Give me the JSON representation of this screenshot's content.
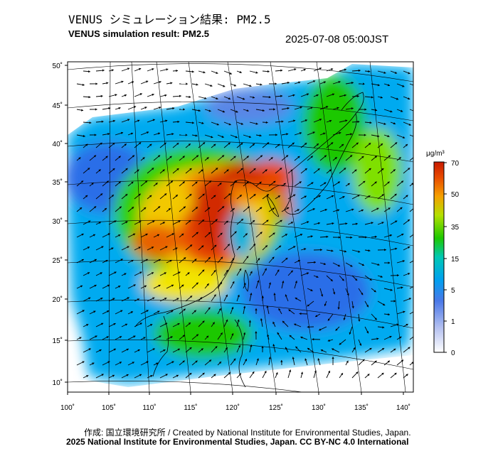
{
  "header": {
    "title_jp": "VENUS シミュレーション結果: PM2.5",
    "title_en": "VENUS simulation result: PM2.5",
    "timestamp": "2025-07-08 05:00JST"
  },
  "map": {
    "lon_ticks": [
      "100˚",
      "105˚",
      "110˚",
      "115˚",
      "120˚",
      "125˚",
      "130˚",
      "135˚",
      "140˚"
    ],
    "lat_ticks": [
      "50˚",
      "45˚",
      "40˚",
      "35˚",
      "30˚",
      "25˚",
      "20˚",
      "15˚",
      "10˚"
    ]
  },
  "colorbar": {
    "unit": "μg/m³",
    "ticks": [
      "70",
      "50",
      "35",
      "15",
      "5",
      "1",
      "0"
    ],
    "colors": [
      "#c81a00",
      "#e84a00",
      "#f5a000",
      "#f2e400",
      "#7fe000",
      "#1ec800",
      "#00c8b4",
      "#00a0f0",
      "#1e64f0",
      "#6e8ee6",
      "#b4c0f0",
      "#ffffff"
    ]
  },
  "credits": {
    "line1": "作成: 国立環境研究所 / Created by National Institute for Environmental Studies, Japan.",
    "line2": "2025 National Institute for Environmental Studies, Japan. CC BY-NC 4.0 International"
  }
}
